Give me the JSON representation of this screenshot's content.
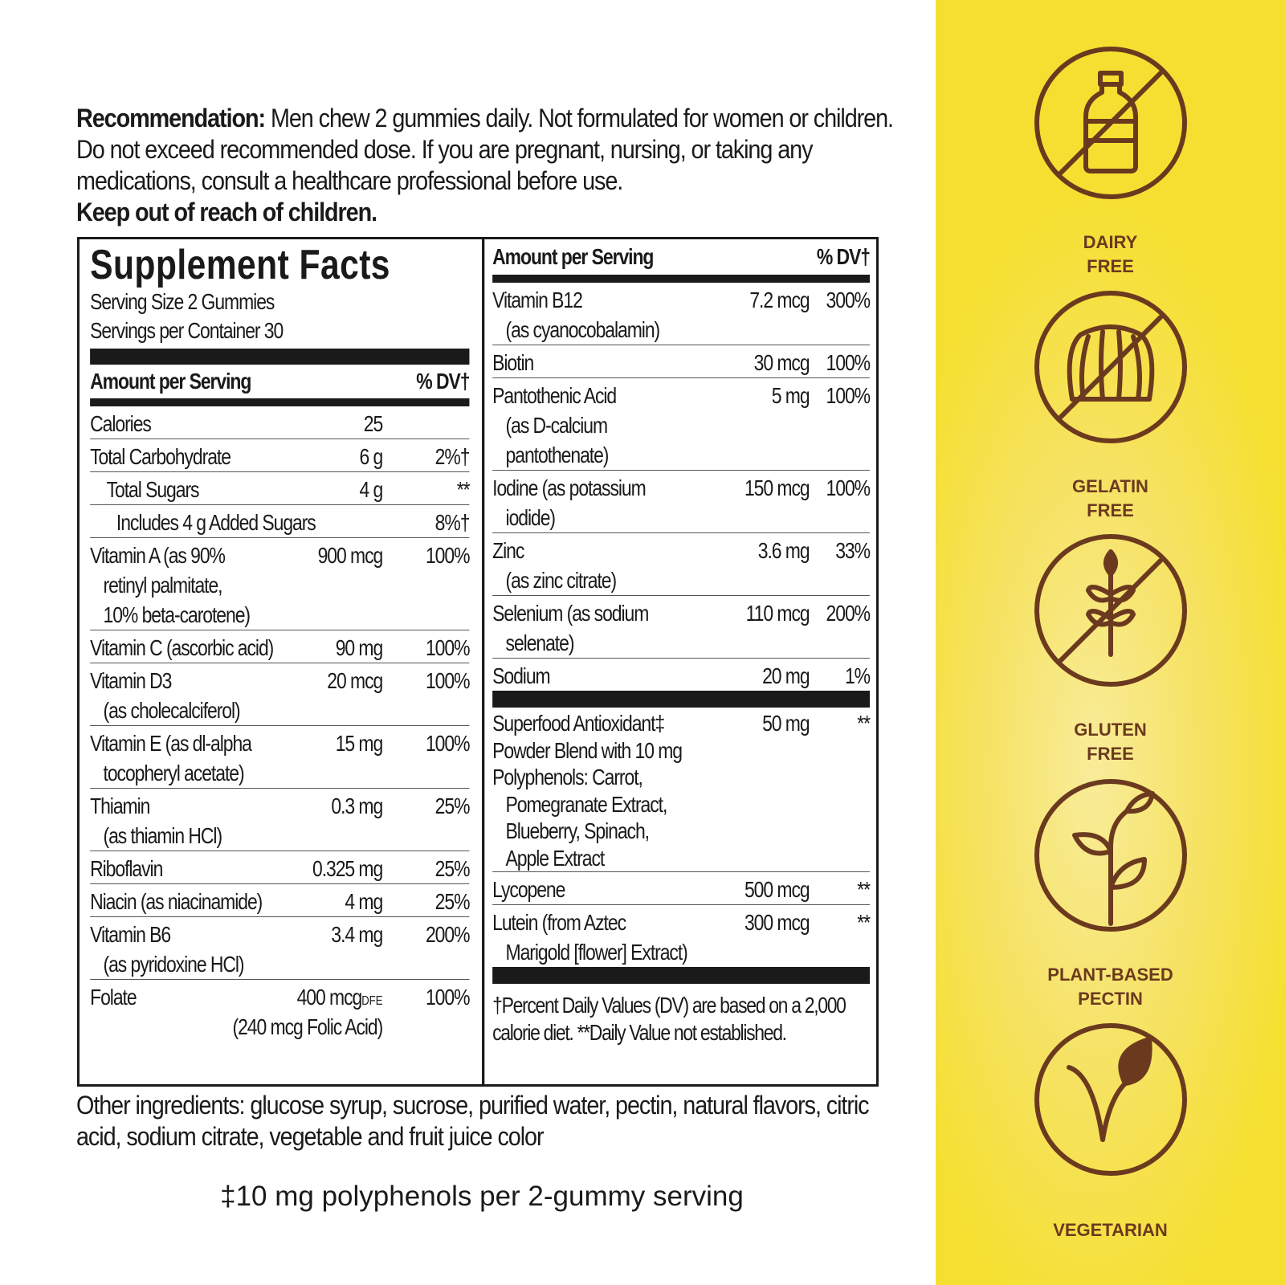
{
  "recommendation": {
    "label": "Recommendation:",
    "text": " Men chew 2 gummies daily. Not formulated for women or children. Do not exceed recommended dose. If you are pregnant, nursing, or taking any medications, consult a healthcare professional before use.",
    "warning": "Keep out of reach of children."
  },
  "facts": {
    "title": "Supplement Facts",
    "serving_size": "Serving Size 2 Gummies",
    "servings_per_container": "Servings per Container 30",
    "amount_header": "Amount per Serving",
    "dv_header": "% DV†",
    "left_rows": [
      {
        "name": [
          "Calories"
        ],
        "amount": "25",
        "dv": ""
      },
      {
        "name": [
          "Total Carbohydrate"
        ],
        "amount": "6 g",
        "dv": "2%†"
      },
      {
        "name": [
          "Total Sugars"
        ],
        "amount": "4 g",
        "dv": "**",
        "level": 1
      },
      {
        "name": [
          "Includes 4 g Added Sugars"
        ],
        "amount": "",
        "dv": "8%†",
        "level": 2
      },
      {
        "name": [
          "Vitamin A (as 90%",
          "retinyl palmitate,",
          "10% beta-carotene)"
        ],
        "amount": "900 mcg",
        "dv": "100%"
      },
      {
        "name": [
          "Vitamin C (ascorbic acid)"
        ],
        "amount": "90 mg",
        "dv": "100%"
      },
      {
        "name": [
          "Vitamin D3",
          "(as cholecalciferol)"
        ],
        "amount": "20 mcg",
        "dv": "100%"
      },
      {
        "name": [
          "Vitamin E (as dl-alpha",
          "tocopheryl acetate)"
        ],
        "amount": "15 mg",
        "dv": "100%"
      },
      {
        "name": [
          "Thiamin",
          "(as thiamin HCl)"
        ],
        "amount": "0.3 mg",
        "dv": "25%"
      },
      {
        "name": [
          "Riboflavin"
        ],
        "amount": "0.325 mg",
        "dv": "25%"
      },
      {
        "name": [
          "Niacin (as niacinamide)"
        ],
        "amount": "4 mg",
        "dv": "25%"
      },
      {
        "name": [
          "Vitamin B6",
          "(as pyridoxine HCl)"
        ],
        "amount": "3.4 mg",
        "dv": "200%"
      },
      {
        "name": [
          "Folate"
        ],
        "amount": "400 mcg",
        "unit_suffix": "DFE",
        "amount_note": "(240 mcg Folic Acid)",
        "dv": "100%"
      }
    ],
    "right_rows": [
      {
        "name": [
          "Vitamin B12",
          "(as cyanocobalamin)"
        ],
        "amount": "7.2 mcg",
        "dv": "300%"
      },
      {
        "name": [
          "Biotin"
        ],
        "amount": "30 mcg",
        "dv": "100%"
      },
      {
        "name": [
          "Pantothenic Acid",
          "(as D-calcium",
          "pantothenate)"
        ],
        "amount": "5 mg",
        "dv": "100%"
      },
      {
        "name": [
          "Iodine (as potassium",
          "iodide)"
        ],
        "amount": "150 mcg",
        "dv": "100%"
      },
      {
        "name": [
          "Zinc",
          "(as zinc citrate)"
        ],
        "amount": "3.6 mg",
        "dv": "33%"
      },
      {
        "name": [
          "Selenium (as sodium",
          "selenate)"
        ],
        "amount": "110 mcg",
        "dv": "200%"
      },
      {
        "name": [
          "Sodium"
        ],
        "amount": "20 mg",
        "dv": "1%",
        "break_after": true
      },
      {
        "name": [
          "Superfood Antioxidant‡",
          "Powder Blend with 10 mg",
          "Polyphenols: Carrot,",
          "Pomegranate Extract,",
          "Blueberry, Spinach,",
          "Apple Extract"
        ],
        "amount": "50 mg",
        "dv": "**"
      },
      {
        "name": [
          "Lycopene"
        ],
        "amount": "500 mcg",
        "dv": "**"
      },
      {
        "name": [
          "Lutein (from Aztec",
          "Marigold [flower] Extract)"
        ],
        "amount": "300 mcg",
        "dv": "**",
        "break_after": true
      }
    ],
    "footnote": "†Percent Daily Values (DV) are based on a 2,000 calorie diet. **Daily Value not established."
  },
  "other_ingredients": "Other ingredients: glucose syrup, sucrose, purified water, pectin, natural flavors, citric acid, sodium citrate, vegetable and fruit juice color",
  "polyphenol_note": "‡10 mg polyphenols per 2-gummy serving",
  "badges": [
    {
      "icon": "no-dairy-icon",
      "line1": "DAIRY",
      "line2": "FREE"
    },
    {
      "icon": "no-gelatin-icon",
      "line1": "GELATIN",
      "line2": "FREE"
    },
    {
      "icon": "no-gluten-icon",
      "line1": "GLUTEN",
      "line2": "FREE"
    },
    {
      "icon": "plant-icon",
      "line1": "PLANT-BASED",
      "line2": "PECTIN"
    },
    {
      "icon": "vegetarian-icon",
      "line1": "VEGETARIAN",
      "line2": ""
    }
  ],
  "colors": {
    "side_panel": "#f5e031",
    "icon_brown": "#6b3a1e",
    "text": "#1a1a1a"
  }
}
